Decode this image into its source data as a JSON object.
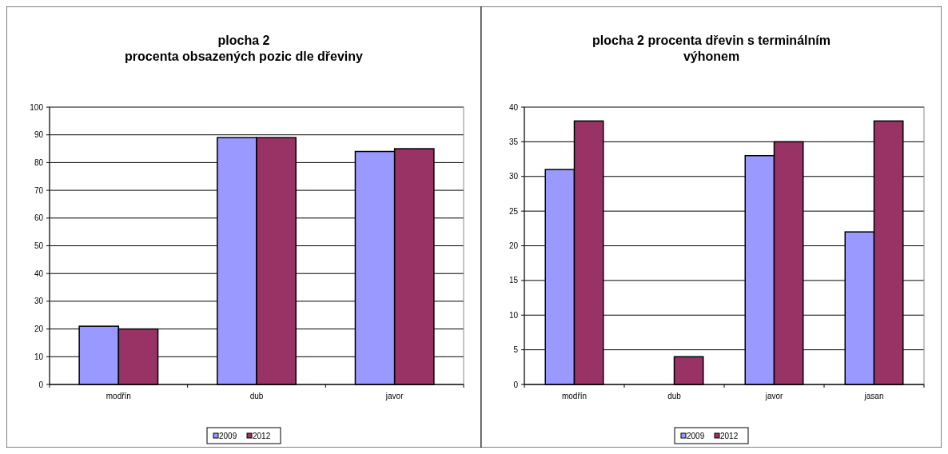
{
  "chart_data": [
    {
      "type": "bar",
      "title": "plocha 2\nprocenta obsazených pozic dle dřeviny",
      "categories": [
        "modřín",
        "dub",
        "javor"
      ],
      "series": [
        {
          "name": "2009",
          "color": "#9999ff",
          "values": [
            21,
            89,
            84
          ]
        },
        {
          "name": "2012",
          "color": "#993366",
          "values": [
            20,
            89,
            85
          ]
        }
      ],
      "ylim": [
        0,
        100
      ],
      "yticks": [
        0,
        10,
        20,
        30,
        40,
        50,
        60,
        70,
        80,
        90,
        100
      ],
      "grid": "y",
      "legend": "bottom"
    },
    {
      "type": "bar",
      "title": "plocha 2 procenta dřevin s terminálním\nvýhonem",
      "categories": [
        "modřín",
        "dub",
        "javor",
        "jasan"
      ],
      "series": [
        {
          "name": "2009",
          "color": "#9999ff",
          "values": [
            31,
            0,
            33,
            22
          ]
        },
        {
          "name": "2012",
          "color": "#993366",
          "values": [
            38,
            4,
            35,
            38
          ]
        }
      ],
      "ylim": [
        0,
        40
      ],
      "yticks": [
        0,
        5,
        10,
        15,
        20,
        25,
        30,
        35,
        40
      ],
      "grid": "y",
      "legend": "bottom"
    }
  ]
}
